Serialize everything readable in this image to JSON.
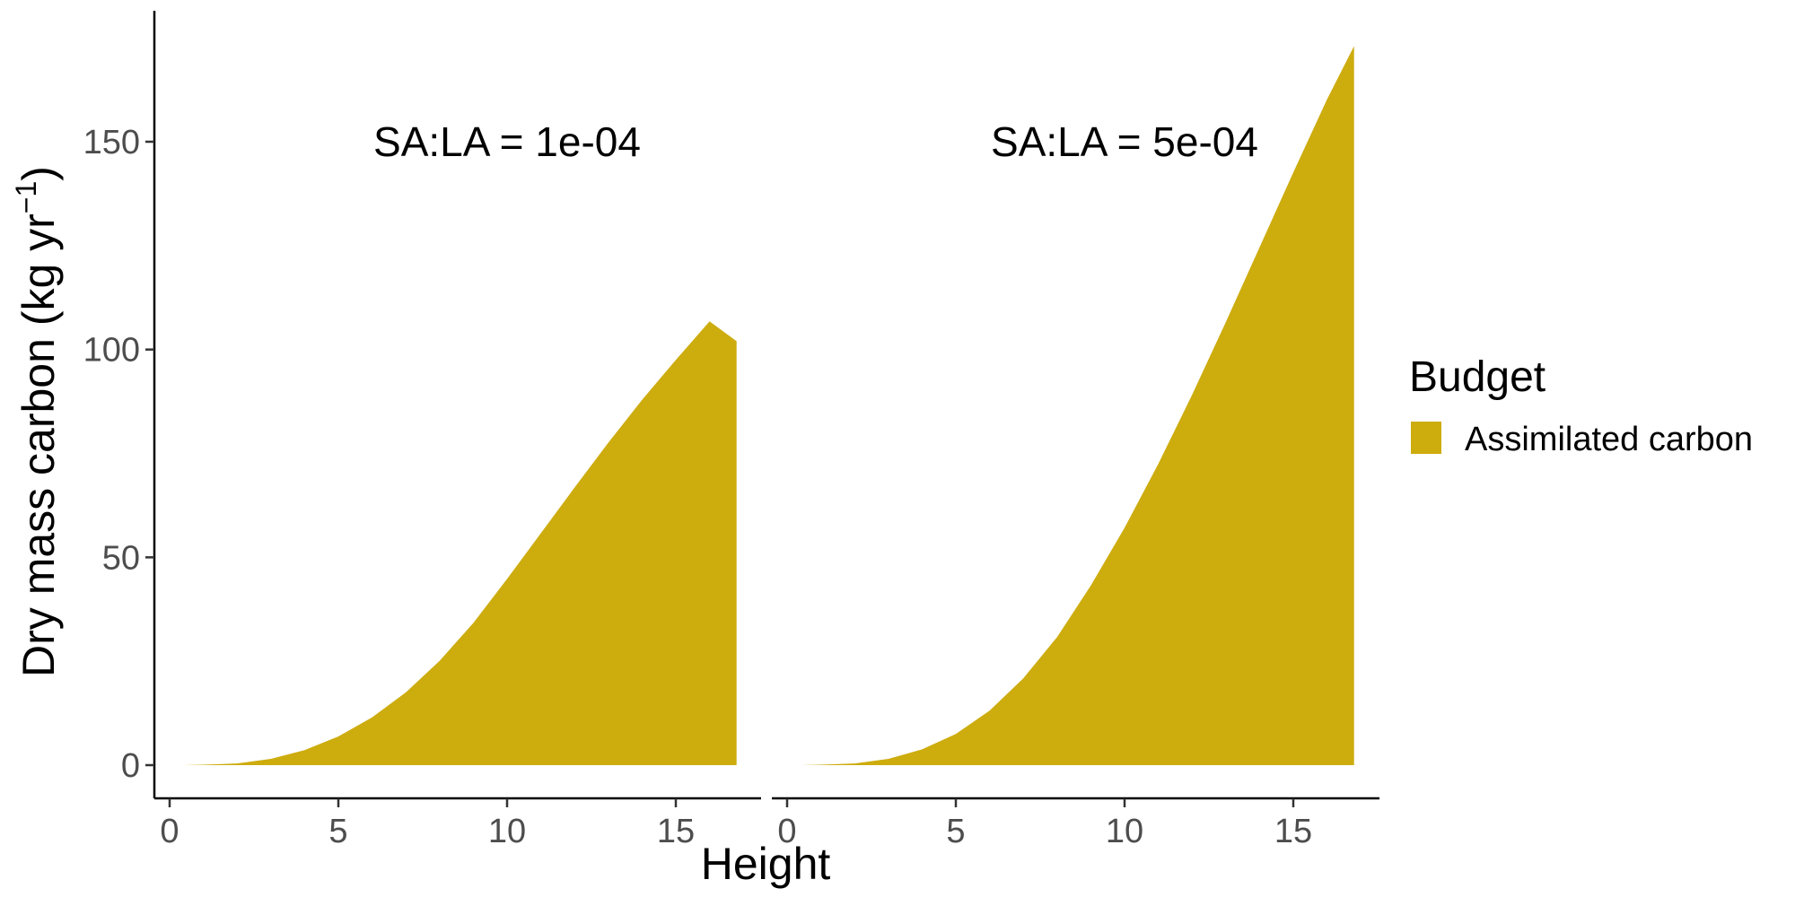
{
  "chart_data": {
    "type": "area",
    "x_label": "Height",
    "y_label": "Dry mass carbon (kg yr",
    "y_label_superscript": "−1",
    "y_label_suffix": ")",
    "xlim": [
      0,
      17
    ],
    "ylim": [
      0,
      180
    ],
    "x_ticks": [
      0,
      5,
      10,
      15
    ],
    "y_ticks": [
      0,
      50,
      100,
      150
    ],
    "legend": {
      "title": "Budget",
      "items": [
        {
          "label": "Assimilated carbon",
          "color": "#CDAC0E"
        }
      ]
    },
    "panels": [
      {
        "label": "SA:LA =  1e-04",
        "series": [
          {
            "name": "Assimilated carbon",
            "x": [
              0.4,
              1,
              2,
              3,
              4,
              5,
              6,
              7,
              8,
              9,
              10,
              11,
              12,
              13,
              14,
              15,
              16,
              16.8
            ],
            "y": [
              0,
              0.1,
              0.4,
              1.5,
              3.6,
              6.9,
              11.5,
              17.5,
              25.1,
              34.2,
              44.8,
              55.8,
              66.8,
              77.6,
              87.9,
              97.5,
              106.8,
              102
            ]
          }
        ]
      },
      {
        "label": "SA:LA =  5e-04",
        "series": [
          {
            "name": "Assimilated carbon",
            "x": [
              0.4,
              1,
              2,
              3,
              4,
              5,
              6,
              7,
              8,
              9,
              10,
              11,
              12,
              13,
              14,
              15,
              16,
              16.8
            ],
            "y": [
              0,
              0.1,
              0.4,
              1.5,
              3.8,
              7.5,
              13.1,
              20.9,
              30.8,
              43.2,
              57.1,
              72.5,
              89.1,
              106.6,
              124.6,
              142.6,
              160.2,
              173
            ]
          }
        ]
      }
    ]
  }
}
